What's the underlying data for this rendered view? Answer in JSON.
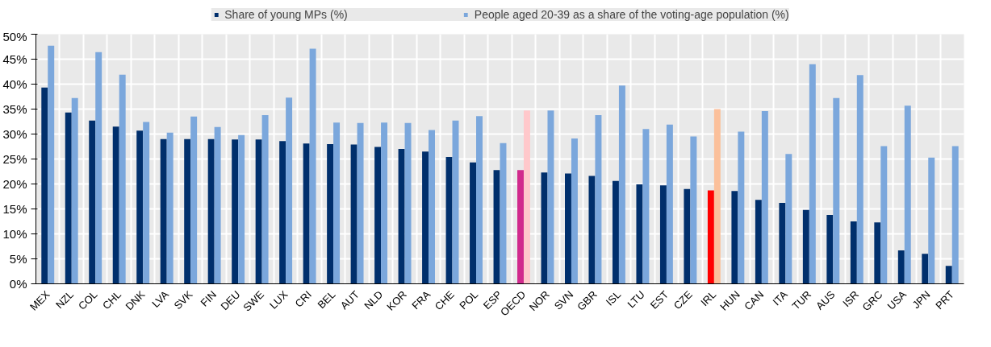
{
  "chart_data": {
    "type": "bar",
    "categories": [
      "MEX",
      "NZL",
      "COL",
      "CHL",
      "DNK",
      "LVA",
      "SVK",
      "FIN",
      "DEU",
      "SWE",
      "LUX",
      "CRI",
      "BEL",
      "AUT",
      "NLD",
      "KOR",
      "FRA",
      "CHE",
      "POL",
      "ESP",
      "OECD",
      "NOR",
      "SVN",
      "GBR",
      "ISL",
      "LTU",
      "EST",
      "CZE",
      "IRL",
      "HUN",
      "CAN",
      "ITA",
      "TUR",
      "AUS",
      "ISR",
      "GRC",
      "USA",
      "JPN",
      "PRT"
    ],
    "series": [
      {
        "name": "Share of young MPs (%)",
        "color": "#002f6c",
        "colors": [
          "#002f6c",
          "#002f6c",
          "#002f6c",
          "#002f6c",
          "#002f6c",
          "#002f6c",
          "#002f6c",
          "#002f6c",
          "#002f6c",
          "#002f6c",
          "#002f6c",
          "#002f6c",
          "#002f6c",
          "#002f6c",
          "#002f6c",
          "#002f6c",
          "#002f6c",
          "#002f6c",
          "#002f6c",
          "#002f6c",
          "#d12a8d",
          "#002f6c",
          "#002f6c",
          "#002f6c",
          "#002f6c",
          "#002f6c",
          "#002f6c",
          "#002f6c",
          "#ff0000",
          "#002f6c",
          "#002f6c",
          "#002f6c",
          "#002f6c",
          "#002f6c",
          "#002f6c",
          "#002f6c",
          "#002f6c",
          "#002f6c",
          "#002f6c"
        ],
        "values": [
          39.3,
          34.3,
          32.7,
          31.5,
          30.7,
          29.0,
          29.0,
          29.0,
          28.9,
          28.9,
          28.6,
          28.1,
          28.0,
          27.9,
          27.4,
          27.0,
          26.5,
          25.4,
          24.3,
          22.8,
          22.8,
          22.3,
          22.1,
          21.6,
          20.6,
          19.9,
          19.7,
          19.0,
          18.7,
          18.6,
          16.8,
          16.2,
          14.8,
          13.8,
          12.5,
          12.3,
          6.7,
          6.0,
          3.6
        ]
      },
      {
        "name": "People aged 20-39 as a share of the voting-age population (%)",
        "color": "#7ba7dc",
        "colors": [
          "#7ba7dc",
          "#7ba7dc",
          "#7ba7dc",
          "#7ba7dc",
          "#7ba7dc",
          "#7ba7dc",
          "#7ba7dc",
          "#7ba7dc",
          "#7ba7dc",
          "#7ba7dc",
          "#7ba7dc",
          "#7ba7dc",
          "#7ba7dc",
          "#7ba7dc",
          "#7ba7dc",
          "#7ba7dc",
          "#7ba7dc",
          "#7ba7dc",
          "#7ba7dc",
          "#7ba7dc",
          "#ffc8cb",
          "#7ba7dc",
          "#7ba7dc",
          "#7ba7dc",
          "#7ba7dc",
          "#7ba7dc",
          "#7ba7dc",
          "#7ba7dc",
          "#fbc09b",
          "#7ba7dc",
          "#7ba7dc",
          "#7ba7dc",
          "#7ba7dc",
          "#7ba7dc",
          "#7ba7dc",
          "#7ba7dc",
          "#7ba7dc",
          "#7ba7dc",
          "#7ba7dc"
        ],
        "values": [
          47.7,
          37.2,
          46.4,
          41.9,
          32.4,
          30.3,
          33.5,
          31.4,
          29.8,
          33.8,
          37.3,
          47.1,
          32.3,
          32.2,
          32.3,
          32.2,
          30.8,
          32.7,
          33.6,
          28.2,
          34.7,
          34.7,
          29.1,
          33.8,
          39.7,
          31.0,
          31.9,
          29.5,
          35.0,
          30.5,
          34.6,
          26.0,
          44.0,
          37.2,
          41.8,
          27.6,
          35.7,
          25.3,
          27.6
        ]
      }
    ],
    "ylim": [
      0,
      50
    ],
    "yticks": [
      {
        "value": 0,
        "label": "0%"
      },
      {
        "value": 5,
        "label": "5%"
      },
      {
        "value": 10,
        "label": "10%"
      },
      {
        "value": 15,
        "label": "15%"
      },
      {
        "value": 20,
        "label": "20%"
      },
      {
        "value": 25,
        "label": "25%"
      },
      {
        "value": 30,
        "label": "30%"
      },
      {
        "value": 35,
        "label": "35%"
      },
      {
        "value": 40,
        "label": "40%"
      },
      {
        "value": 45,
        "label": "45%"
      },
      {
        "value": 50,
        "label": "50%"
      }
    ],
    "grid": true,
    "legend": "top"
  }
}
